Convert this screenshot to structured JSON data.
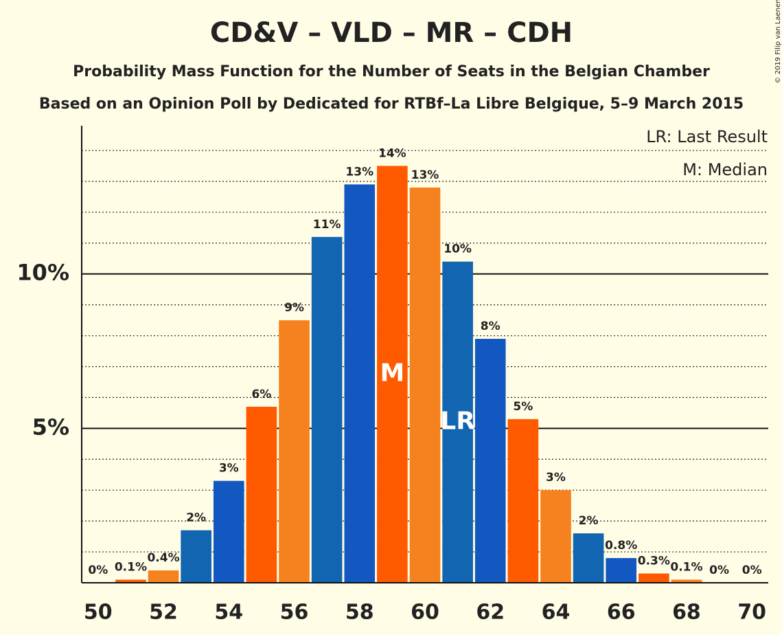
{
  "chart_data": {
    "type": "bar",
    "title": "CD&V – VLD – MR – CDH",
    "subtitle": "Probability Mass Function for the Number of Seats in the Belgian Chamber",
    "subtitle2": "Based on an Opinion Poll by Dedicated for RTBf–La Libre Belgique, 5–9 March 2015",
    "copyright": "© 2019 Filip van Laenen",
    "legend": [
      "LR: Last Result",
      "M: Median"
    ],
    "x": [
      50,
      51,
      52,
      53,
      54,
      55,
      56,
      57,
      58,
      59,
      60,
      61,
      62,
      63,
      64,
      65,
      66,
      67,
      68,
      69,
      70
    ],
    "values": [
      0,
      0.1,
      0.4,
      1.7,
      3.3,
      5.7,
      8.5,
      11.2,
      12.9,
      13.5,
      12.8,
      10.4,
      7.9,
      5.3,
      3.0,
      1.6,
      0.8,
      0.3,
      0.1,
      0,
      0
    ],
    "value_labels": [
      "0%",
      "0.1%",
      "0.4%",
      "2%",
      "3%",
      "6%",
      "9%",
      "11%",
      "13%",
      "14%",
      "13%",
      "10%",
      "8%",
      "5%",
      "3%",
      "2%",
      "0.8%",
      "0.3%",
      "0.1%",
      "0%",
      "0%"
    ],
    "colors": [
      "#ff5a00",
      "#ff5a00",
      "#f5821f",
      "#1265b0",
      "#1358c0",
      "#ff5a00",
      "#f5821f",
      "#1265b0",
      "#1358c0",
      "#ff5a00",
      "#f5821f",
      "#1265b0",
      "#1358c0",
      "#ff5a00",
      "#f5821f",
      "#1265b0",
      "#1358c0",
      "#ff5a00",
      "#f5821f",
      "#1265b0",
      "#1358c0"
    ],
    "annotations": [
      {
        "x": 59,
        "text": "M"
      },
      {
        "x": 61,
        "text": "LR"
      }
    ],
    "xlim": [
      49.5,
      70.5
    ],
    "xticks": [
      50,
      52,
      54,
      56,
      58,
      60,
      62,
      64,
      66,
      68,
      70
    ],
    "ylim": [
      0,
      14.8
    ],
    "yticks": [
      {
        "value": 5,
        "label": "5%"
      },
      {
        "value": 10,
        "label": "10%"
      }
    ],
    "minor_grid": [
      1,
      2,
      3,
      4,
      6,
      7,
      8,
      9,
      11,
      12,
      13,
      14
    ]
  }
}
